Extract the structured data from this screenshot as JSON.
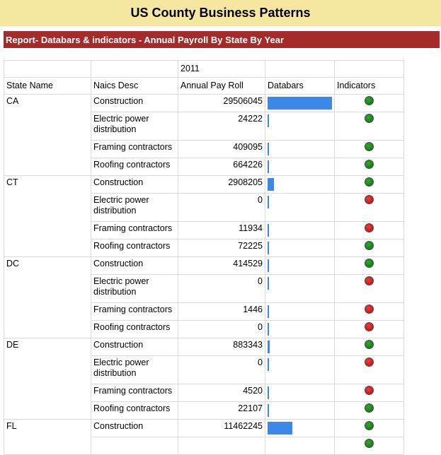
{
  "title": "US County Business Patterns",
  "report_header": "Report- Databars & indicators - Annual Payroll By State By Year",
  "table": {
    "year": "2011",
    "headers": {
      "state": "State Name",
      "naics": "Naics Desc",
      "payroll": "Annual Pay Roll",
      "databars": "Databars",
      "indicators": "Indicators"
    },
    "bar_max": 29506045,
    "indicator_colors": {
      "green": "#0a8a0a",
      "red": "#e01010"
    },
    "databar_color": "#3c87e8",
    "states": [
      {
        "name": "CA",
        "rows": [
          {
            "naics": "Construction",
            "payroll": 29506045,
            "indicator": "green"
          },
          {
            "naics": "Electric power distribution",
            "payroll": 24222,
            "indicator": "green"
          },
          {
            "naics": "Framing contractors",
            "payroll": 409095,
            "indicator": "green"
          },
          {
            "naics": "Roofing contractors",
            "payroll": 664226,
            "indicator": "green"
          }
        ]
      },
      {
        "name": "CT",
        "rows": [
          {
            "naics": "Construction",
            "payroll": 2908205,
            "indicator": "green"
          },
          {
            "naics": "Electric power distribution",
            "payroll": 0,
            "indicator": "red"
          },
          {
            "naics": "Framing contractors",
            "payroll": 11934,
            "indicator": "red"
          },
          {
            "naics": "Roofing contractors",
            "payroll": 72225,
            "indicator": "green"
          }
        ]
      },
      {
        "name": "DC",
        "rows": [
          {
            "naics": "Construction",
            "payroll": 414529,
            "indicator": "green"
          },
          {
            "naics": "Electric power distribution",
            "payroll": 0,
            "indicator": "red"
          },
          {
            "naics": "Framing contractors",
            "payroll": 1446,
            "indicator": "red"
          },
          {
            "naics": "Roofing contractors",
            "payroll": 0,
            "indicator": "red"
          }
        ]
      },
      {
        "name": "DE",
        "rows": [
          {
            "naics": "Construction",
            "payroll": 883343,
            "indicator": "green"
          },
          {
            "naics": "Electric power distribution",
            "payroll": 0,
            "indicator": "red"
          },
          {
            "naics": "Framing contractors",
            "payroll": 4520,
            "indicator": "red"
          },
          {
            "naics": "Roofing contractors",
            "payroll": 22107,
            "indicator": "green"
          }
        ]
      },
      {
        "name": "FL",
        "rows": [
          {
            "naics": "Construction",
            "payroll": 11462245,
            "indicator": "green"
          },
          {
            "naics": "",
            "payroll": null,
            "indicator": "green"
          }
        ]
      }
    ]
  }
}
